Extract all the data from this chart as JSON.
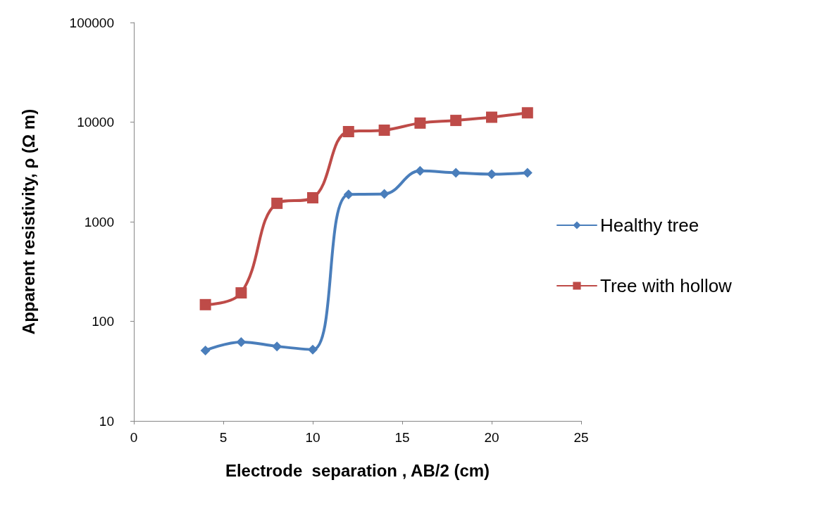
{
  "chart_data": {
    "type": "line",
    "xlabel": "Electrode  separation , AB/2 (cm)",
    "ylabel": "Apparent resistivity, ρ (Ω m)",
    "x": [
      4,
      6,
      8,
      10,
      12,
      14,
      16,
      18,
      20,
      22
    ],
    "series": [
      {
        "name": "Healthy tree",
        "color": "#4a7ebb",
        "marker": "diamond",
        "values": [
          51,
          62,
          56,
          52,
          1880,
          1900,
          3240,
          3100,
          3000,
          3100
        ]
      },
      {
        "name": "Tree with hollow",
        "color": "#be4b48",
        "marker": "square",
        "values": [
          147,
          193,
          1530,
          1740,
          8030,
          8300,
          9780,
          10400,
          11200,
          12400
        ]
      }
    ],
    "xlim": [
      0,
      25
    ],
    "xticks": [
      0,
      5,
      10,
      15,
      20,
      25
    ],
    "ylim": [
      10,
      100000
    ],
    "yticks": [
      10,
      100,
      1000,
      10000,
      100000
    ],
    "log": "y",
    "grid": false,
    "legend": "right",
    "line_style": "solid"
  }
}
